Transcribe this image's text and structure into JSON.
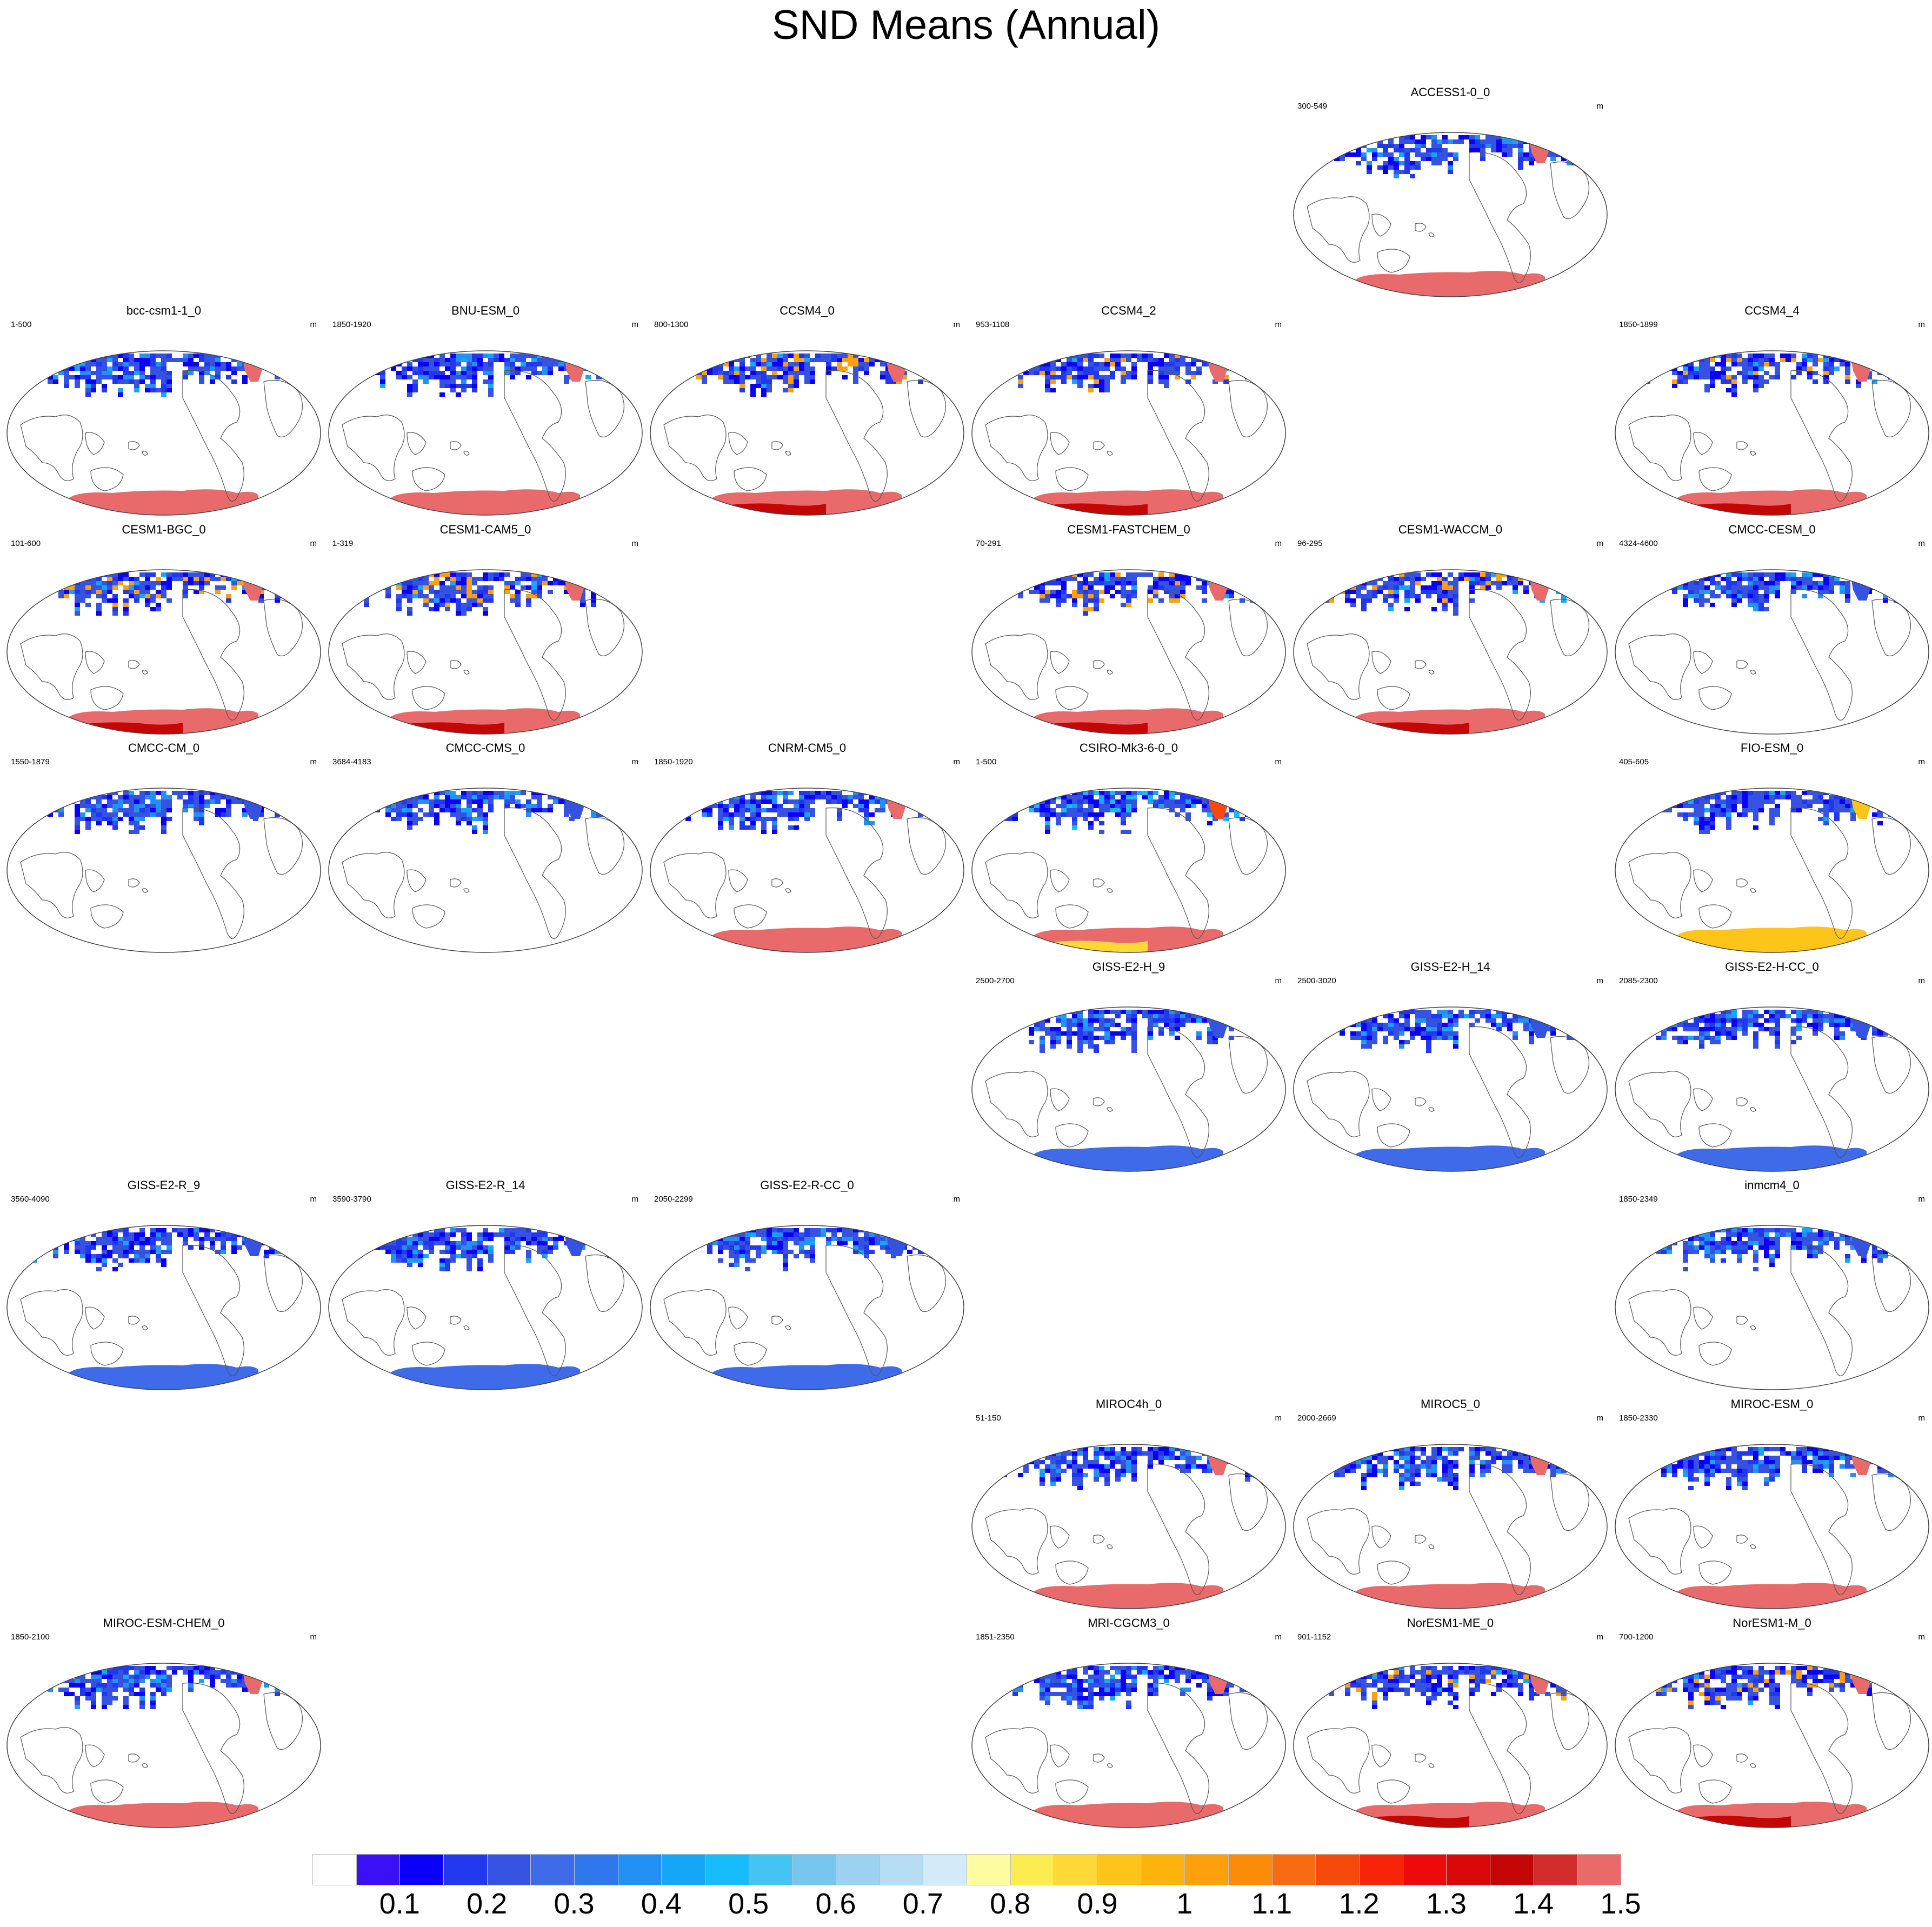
{
  "title": "SND Means (Annual)",
  "units": "m",
  "panels": [
    {
      "name": "ACCESS1-0_0",
      "years": "300-549",
      "row": 0,
      "col": 4,
      "scheme": "pink"
    },
    {
      "name": "bcc-csm1-1_0",
      "years": "1-500",
      "row": 1,
      "col": 0,
      "scheme": "pink"
    },
    {
      "name": "BNU-ESM_0",
      "years": "1850-1920",
      "row": 1,
      "col": 1,
      "scheme": "pink"
    },
    {
      "name": "CCSM4_0",
      "years": "800-1300",
      "row": 1,
      "col": 2,
      "scheme": "red"
    },
    {
      "name": "CCSM4_2",
      "years": "953-1108",
      "row": 1,
      "col": 3,
      "scheme": "red"
    },
    {
      "name": "CCSM4_4",
      "years": "1850-1899",
      "row": 1,
      "col": 5,
      "scheme": "red"
    },
    {
      "name": "CESM1-BGC_0",
      "years": "101-600",
      "row": 2,
      "col": 0,
      "scheme": "red"
    },
    {
      "name": "CESM1-CAM5_0",
      "years": "1-319",
      "row": 2,
      "col": 1,
      "scheme": "red"
    },
    {
      "name": "CESM1-FASTCHEM_0",
      "years": "70-291",
      "row": 2,
      "col": 3,
      "scheme": "red"
    },
    {
      "name": "CESM1-WACCM_0",
      "years": "96-295",
      "row": 2,
      "col": 4,
      "scheme": "red"
    },
    {
      "name": "CMCC-CESM_0",
      "years": "4324-4600",
      "row": 2,
      "col": 5,
      "scheme": "none"
    },
    {
      "name": "CMCC-CM_0",
      "years": "1550-1879",
      "row": 3,
      "col": 0,
      "scheme": "none"
    },
    {
      "name": "CMCC-CMS_0",
      "years": "3684-4183",
      "row": 3,
      "col": 1,
      "scheme": "none"
    },
    {
      "name": "CNRM-CM5_0",
      "years": "1850-1920",
      "row": 3,
      "col": 2,
      "scheme": "pink"
    },
    {
      "name": "CSIRO-Mk3-6-0_0",
      "years": "1-500",
      "row": 3,
      "col": 3,
      "scheme": "mixed"
    },
    {
      "name": "FIO-ESM_0",
      "years": "405-605",
      "row": 3,
      "col": 5,
      "scheme": "yellow"
    },
    {
      "name": "GISS-E2-H_9",
      "years": "2500-2700",
      "row": 4,
      "col": 3,
      "scheme": "blue"
    },
    {
      "name": "GISS-E2-H_14",
      "years": "2500-3020",
      "row": 4,
      "col": 4,
      "scheme": "blue"
    },
    {
      "name": "GISS-E2-H-CC_0",
      "years": "2085-2300",
      "row": 4,
      "col": 5,
      "scheme": "blue"
    },
    {
      "name": "GISS-E2-R_9",
      "years": "3560-4090",
      "row": 5,
      "col": 0,
      "scheme": "blue"
    },
    {
      "name": "GISS-E2-R_14",
      "years": "3590-3790",
      "row": 5,
      "col": 1,
      "scheme": "blue"
    },
    {
      "name": "GISS-E2-R-CC_0",
      "years": "2050-2299",
      "row": 5,
      "col": 2,
      "scheme": "blue"
    },
    {
      "name": "inmcm4_0",
      "years": "1850-2349",
      "row": 5,
      "col": 5,
      "scheme": "none"
    },
    {
      "name": "MIROC4h_0",
      "years": "51-150",
      "row": 6,
      "col": 3,
      "scheme": "pink"
    },
    {
      "name": "MIROC5_0",
      "years": "2000-2669",
      "row": 6,
      "col": 4,
      "scheme": "pink"
    },
    {
      "name": "MIROC-ESM_0",
      "years": "1850-2330",
      "row": 6,
      "col": 5,
      "scheme": "pink"
    },
    {
      "name": "MIROC-ESM-CHEM_0",
      "years": "1850-2100",
      "row": 7,
      "col": 0,
      "scheme": "pink"
    },
    {
      "name": "MRI-CGCM3_0",
      "years": "1851-2350",
      "row": 7,
      "col": 3,
      "scheme": "pink"
    },
    {
      "name": "NorESM1-ME_0",
      "years": "901-1152",
      "row": 7,
      "col": 4,
      "scheme": "red"
    },
    {
      "name": "NorESM1-M_0",
      "years": "700-1200",
      "row": 7,
      "col": 5,
      "scheme": "red"
    }
  ],
  "colorbar": {
    "colors": [
      "#ffffff",
      "#3a10f5",
      "#0a00f8",
      "#2238ee",
      "#3552e0",
      "#3f6ae8",
      "#2e78ec",
      "#2391f3",
      "#16a6f8",
      "#16bcf7",
      "#43c4f4",
      "#77c6ee",
      "#9cd2f0",
      "#b6ddf3",
      "#d3eaf8",
      "#fdfca0",
      "#fcec50",
      "#fdd836",
      "#fdc41a",
      "#fcb30c",
      "#fca00c",
      "#fa8c0a",
      "#f76c12",
      "#f64a0c",
      "#f8240a",
      "#ec0a0a",
      "#d80808",
      "#c40606",
      "#d22d2d",
      "#e86a6a"
    ],
    "labels": [
      "0.1",
      "0.2",
      "0.3",
      "0.4",
      "0.5",
      "0.6",
      "0.7",
      "0.8",
      "0.9",
      "1",
      "1.1",
      "1.2",
      "1.3",
      "1.4",
      "1.5"
    ]
  }
}
